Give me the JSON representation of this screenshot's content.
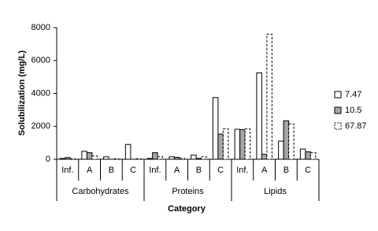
{
  "chart_data": {
    "type": "bar",
    "x_label": "Category",
    "y_label": "Solubilization  (mg/L)",
    "groups": [
      {
        "name": "Carbohydrates",
        "categories": [
          "Inf.",
          "A",
          "B",
          "C"
        ]
      },
      {
        "name": "Proteins",
        "categories": [
          "Inf.",
          "A",
          "B",
          "C"
        ]
      },
      {
        "name": "Lipids",
        "categories": [
          "Inf.",
          "A",
          "B",
          "C"
        ]
      }
    ],
    "series": [
      {
        "name": "7.47",
        "color": "#ffffff",
        "dashed": false,
        "values": [
          50,
          480,
          150,
          900,
          50,
          150,
          250,
          3750,
          1820,
          5250,
          1100,
          620
        ]
      },
      {
        "name": "10.5",
        "color": "#a6a6a6",
        "dashed": false,
        "values": [
          100,
          400,
          0,
          0,
          400,
          120,
          50,
          1530,
          1800,
          300,
          2340,
          450
        ]
      },
      {
        "name": "67.87",
        "color": "#ffffff",
        "dashed": true,
        "values": [
          30,
          200,
          30,
          30,
          150,
          50,
          150,
          1850,
          1850,
          7600,
          2150,
          400
        ]
      }
    ],
    "ylim": [
      0,
      8000
    ],
    "yticks": [
      0,
      2000,
      4000,
      6000,
      8000
    ],
    "grid": false,
    "legend": "right"
  }
}
